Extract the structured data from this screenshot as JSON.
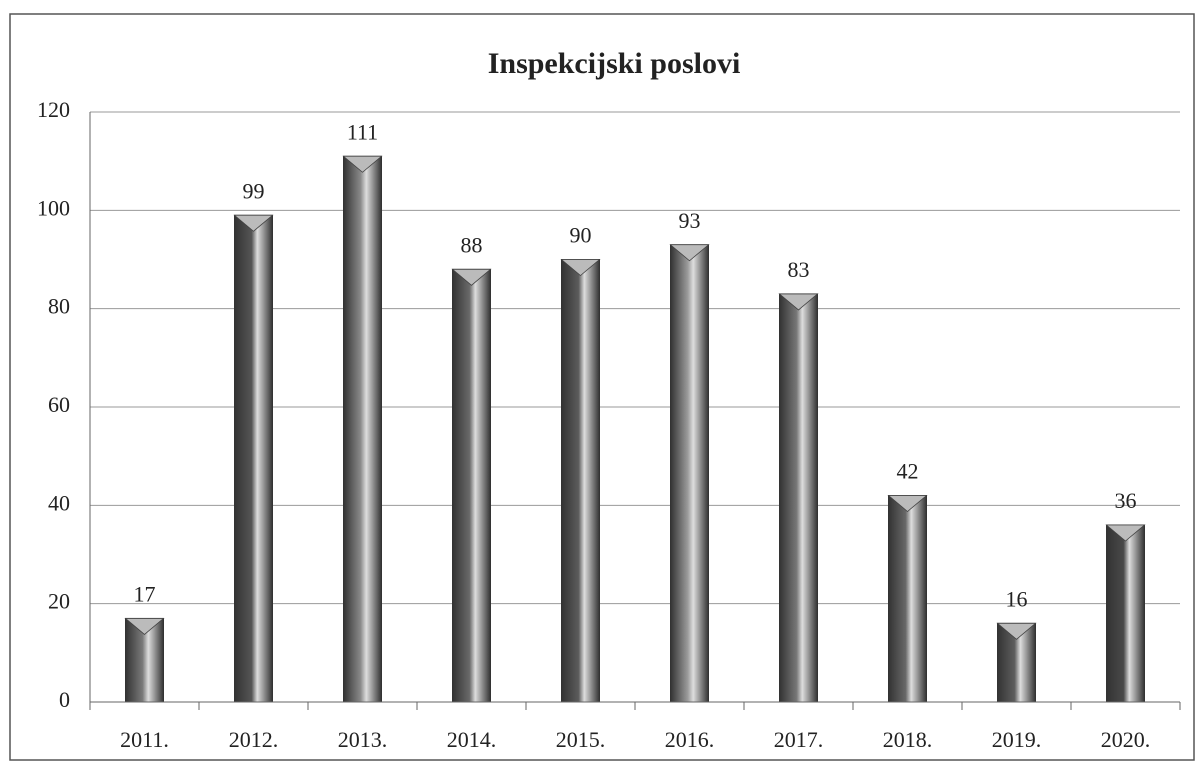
{
  "chart_data": {
    "type": "bar",
    "title": "Inspekcijski poslovi",
    "categories": [
      "2011.",
      "2012.",
      "2013.",
      "2014.",
      "2015.",
      "2016.",
      "2017.",
      "2018.",
      "2019.",
      "2020."
    ],
    "values": [
      17,
      99,
      111,
      88,
      90,
      93,
      83,
      42,
      16,
      36
    ],
    "colors": [
      "#7a7a7a",
      "#555555",
      "#8a8a8a",
      "#6a6a6a",
      "#5c5c5c",
      "#9a9a9a",
      "#777777",
      "#686868",
      "#5e5e5e",
      "#4a4a4a"
    ],
    "ylim": [
      0,
      120
    ],
    "yticks": [
      0,
      20,
      40,
      60,
      80,
      100,
      120
    ],
    "grid": true
  }
}
